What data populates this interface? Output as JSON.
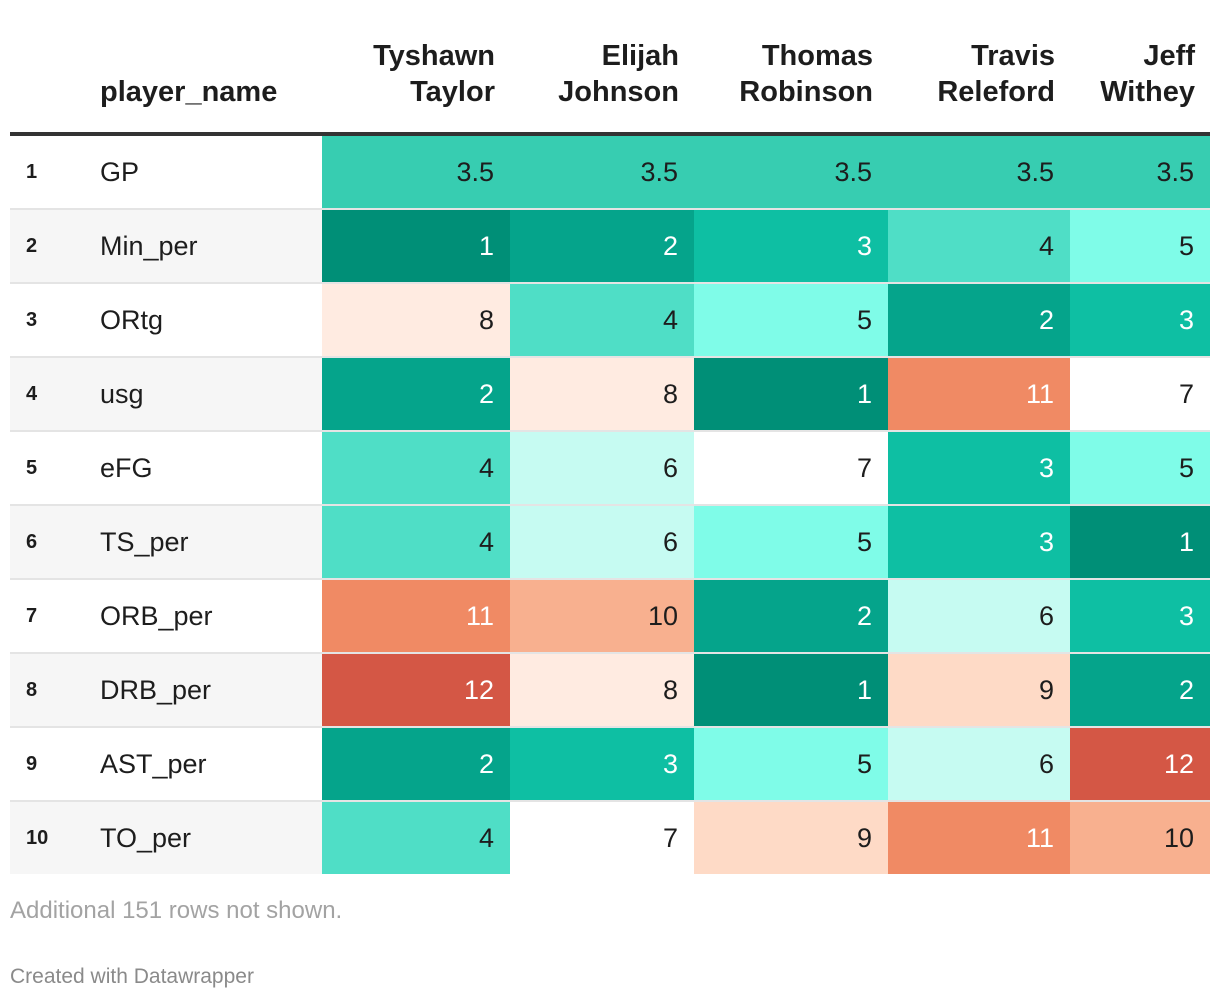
{
  "chart_data": {
    "type": "table",
    "title": "",
    "name_column_header": "player_name",
    "players": [
      [
        "Tyshawn",
        "Taylor"
      ],
      [
        "Elijah",
        "Johnson"
      ],
      [
        "Thomas",
        "Robinson"
      ],
      [
        "Travis",
        "Releford"
      ],
      [
        "Jeff",
        "Withey"
      ]
    ],
    "rows": [
      {
        "rank": "1",
        "stat": "GP",
        "values": [
          "3.5",
          "3.5",
          "3.5",
          "3.5",
          "3.5"
        ]
      },
      {
        "rank": "2",
        "stat": "Min_per",
        "values": [
          "1",
          "2",
          "3",
          "4",
          "5"
        ]
      },
      {
        "rank": "3",
        "stat": "ORtg",
        "values": [
          "8",
          "4",
          "5",
          "2",
          "3"
        ]
      },
      {
        "rank": "4",
        "stat": "usg",
        "values": [
          "2",
          "8",
          "1",
          "11",
          "7"
        ]
      },
      {
        "rank": "5",
        "stat": "eFG",
        "values": [
          "4",
          "6",
          "7",
          "3",
          "5"
        ]
      },
      {
        "rank": "6",
        "stat": "TS_per",
        "values": [
          "4",
          "6",
          "5",
          "3",
          "1"
        ]
      },
      {
        "rank": "7",
        "stat": "ORB_per",
        "values": [
          "11",
          "10",
          "2",
          "6",
          "3"
        ]
      },
      {
        "rank": "8",
        "stat": "DRB_per",
        "values": [
          "12",
          "8",
          "1",
          "9",
          "2"
        ]
      },
      {
        "rank": "9",
        "stat": "AST_per",
        "values": [
          "2",
          "3",
          "5",
          "6",
          "12"
        ]
      },
      {
        "rank": "10",
        "stat": "TO_per",
        "values": [
          "4",
          "7",
          "9",
          "11",
          "10"
        ]
      }
    ],
    "color_scale": {
      "1": "#008f77",
      "2": "#05a48b",
      "3": "#0ebfa3",
      "3.5": "#37cdb1",
      "4": "#4fdec6",
      "5": "#7ffce8",
      "6": "#c6fbf2",
      "7": "#ffffff",
      "8": "#ffebe1",
      "9": "#fedac6",
      "10": "#f8b08f",
      "11": "#f08a64",
      "12": "#d45745"
    },
    "dark_text_threshold": 7
  },
  "footer": {
    "note": "Additional 151 rows not shown.",
    "credit": "Created with Datawrapper"
  }
}
